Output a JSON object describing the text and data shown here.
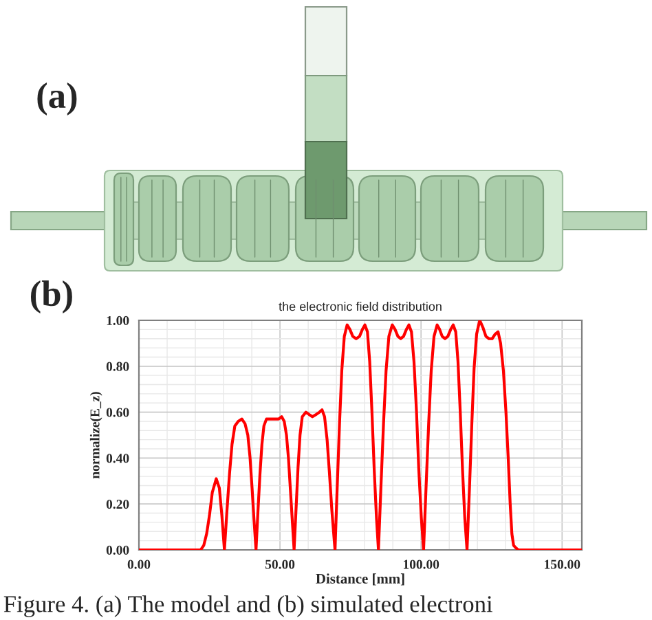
{
  "chart_data": {
    "type": "line",
    "title": "the electronic field distribution",
    "xlabel": "Distance [mm]",
    "ylabel": "normalize(E_z)",
    "annotations": [
      "(a)",
      "(b)",
      "Figure 4. (a) The model and (b) simulated electroni"
    ],
    "x": [
      0,
      21.9,
      23,
      24,
      25,
      26,
      27.4,
      28.5,
      29.4,
      30.3,
      31.2,
      32.1,
      33.0,
      34.0,
      35.2,
      36.5,
      37.6,
      38.6,
      39.4,
      40.1,
      40.8,
      41.5,
      42.2,
      42.9,
      43.6,
      44.3,
      45.2,
      46.5,
      48,
      49.5,
      50.6,
      51.5,
      52.3,
      53,
      53.7,
      54.4,
      55,
      55.7,
      56.4,
      57.1,
      57.9,
      59.2,
      60.3,
      61.5,
      62.8,
      64,
      64.9,
      65.8,
      66.7,
      67.5,
      68.4,
      69.5,
      70.3,
      71.1,
      71.9,
      72.8,
      73.8,
      74.8,
      75.8,
      77,
      78.2,
      79.2,
      80.1,
      81,
      81.8,
      82.6,
      83.4,
      84.2,
      84.9,
      85.8,
      86.7,
      87.6,
      88.6,
      89.8,
      90.8,
      91.8,
      92.8,
      93.8,
      94.8,
      95.7,
      96.6,
      97.5,
      98.4,
      99.2,
      100.1,
      100.9,
      101.8,
      102.7,
      103.6,
      104.6,
      105.7,
      106.6,
      107.5,
      108.5,
      109.5,
      110.5,
      111.4,
      112.3,
      113.1,
      113.9,
      114.7,
      115.5,
      116.3,
      117.2,
      118,
      118.8,
      119.7,
      120.8,
      121.9,
      123,
      124.1,
      125.2,
      126.3,
      127.3,
      128.2,
      129.2,
      130.1,
      130.9,
      131.6,
      132.2,
      132.8,
      133.5,
      134.5,
      157
    ],
    "series": [
      {
        "color": "#ff0000",
        "values": [
          0,
          0,
          0.02,
          0.07,
          0.15,
          0.25,
          0.31,
          0.27,
          0.15,
          0,
          0.17,
          0.33,
          0.46,
          0.54,
          0.56,
          0.57,
          0.55,
          0.5,
          0.4,
          0.27,
          0.13,
          0,
          0.17,
          0.33,
          0.46,
          0.54,
          0.57,
          0.57,
          0.57,
          0.57,
          0.58,
          0.56,
          0.5,
          0.4,
          0.26,
          0.12,
          0,
          0.18,
          0.36,
          0.5,
          0.58,
          0.6,
          0.59,
          0.58,
          0.59,
          0.6,
          0.61,
          0.58,
          0.48,
          0.34,
          0.17,
          0,
          0.28,
          0.55,
          0.78,
          0.93,
          0.98,
          0.96,
          0.93,
          0.92,
          0.93,
          0.96,
          0.98,
          0.95,
          0.82,
          0.6,
          0.35,
          0.14,
          0,
          0.28,
          0.55,
          0.78,
          0.93,
          0.98,
          0.96,
          0.93,
          0.92,
          0.93,
          0.96,
          0.98,
          0.95,
          0.82,
          0.6,
          0.35,
          0.14,
          0,
          0.28,
          0.55,
          0.78,
          0.93,
          0.98,
          0.96,
          0.93,
          0.92,
          0.93,
          0.96,
          0.98,
          0.95,
          0.82,
          0.6,
          0.35,
          0.14,
          0,
          0.28,
          0.55,
          0.79,
          0.94,
          1.0,
          0.97,
          0.93,
          0.92,
          0.92,
          0.94,
          0.95,
          0.9,
          0.78,
          0.6,
          0.4,
          0.2,
          0.07,
          0.02,
          0.01,
          0,
          0
        ]
      }
    ],
    "xlim": [
      0,
      157
    ],
    "ylim": [
      0,
      1
    ],
    "xticks": [
      {
        "value": 0,
        "label": "0.00"
      },
      {
        "value": 50,
        "label": "50.00"
      },
      {
        "value": 100,
        "label": "100.00"
      },
      {
        "value": 150,
        "label": "150.00"
      }
    ],
    "yticks": [
      {
        "value": 0,
        "label": "0.00"
      },
      {
        "value": 0.2,
        "label": "0.20"
      },
      {
        "value": 0.4,
        "label": "0.40"
      },
      {
        "value": 0.6,
        "label": "0.60"
      },
      {
        "value": 0.8,
        "label": "0.80"
      },
      {
        "value": 1,
        "label": "1.00"
      }
    ],
    "grid": true
  }
}
